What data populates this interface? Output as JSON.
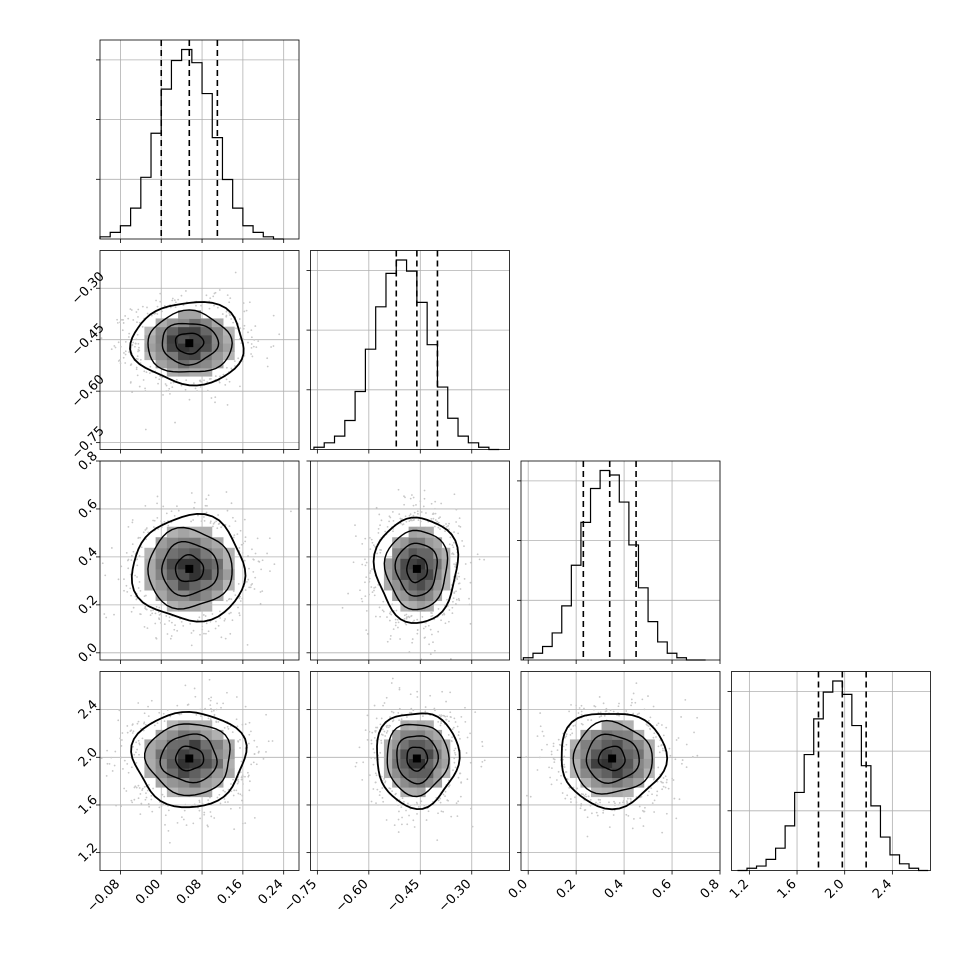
{
  "colors": {
    "background": "#ffffff",
    "line": "#000000",
    "grid": "#b0b0b0",
    "points": "#c8c8c8",
    "density_dark": "#3a3a3a"
  },
  "chart_data": {
    "type": "corner",
    "grid": true,
    "n_params": 4,
    "axes": {
      "p0": {
        "range": [
          -0.12,
          0.27
        ],
        "ticks": [
          -0.08,
          0.0,
          0.08,
          0.16,
          0.24
        ],
        "tick_labels": [
          "−0.08",
          "0.00",
          "0.08",
          "0.16",
          "0.24"
        ]
      },
      "p1": {
        "range": [
          -0.77,
          -0.19
        ],
        "ticks": [
          -0.75,
          -0.6,
          -0.45,
          -0.3
        ],
        "tick_labels": [
          "−0.75",
          "−0.60",
          "−0.45",
          "−0.30"
        ]
      },
      "p2": {
        "range": [
          -0.03,
          0.8
        ],
        "ticks": [
          0.0,
          0.2,
          0.4,
          0.6,
          0.8
        ],
        "tick_labels": [
          "0.0",
          "0.2",
          "0.4",
          "0.6",
          "0.8"
        ]
      },
      "p3": {
        "range": [
          1.05,
          2.72
        ],
        "ticks": [
          1.2,
          1.6,
          2.0,
          2.4
        ],
        "tick_labels": [
          "1.2",
          "1.6",
          "2.0",
          "2.4"
        ]
      }
    },
    "marginals": [
      {
        "param": "p0",
        "quantiles": [
          0.0,
          0.055,
          0.11
        ],
        "hist_edges": [
          -0.12,
          -0.1,
          -0.08,
          -0.06,
          -0.04,
          -0.02,
          0.0,
          0.02,
          0.04,
          0.06,
          0.08,
          0.1,
          0.12,
          0.14,
          0.16,
          0.18,
          0.2,
          0.22,
          0.24
        ],
        "hist_counts": [
          1,
          3,
          6,
          14,
          28,
          48,
          68,
          81,
          86,
          80,
          66,
          46,
          27,
          14,
          6,
          3,
          1,
          0
        ]
      },
      {
        "param": "p1",
        "quantiles": [
          -0.52,
          -0.46,
          -0.4
        ],
        "hist_edges": [
          -0.76,
          -0.73,
          -0.7,
          -0.67,
          -0.64,
          -0.61,
          -0.58,
          -0.55,
          -0.52,
          -0.49,
          -0.46,
          -0.43,
          -0.4,
          -0.37,
          -0.34,
          -0.31,
          -0.28,
          -0.25,
          -0.22
        ],
        "hist_counts": [
          1,
          3,
          6,
          13,
          26,
          45,
          64,
          79,
          85,
          80,
          66,
          47,
          28,
          14,
          6,
          3,
          1,
          0
        ]
      },
      {
        "param": "p2",
        "quantiles": [
          0.23,
          0.34,
          0.45
        ],
        "hist_edges": [
          -0.02,
          0.02,
          0.06,
          0.1,
          0.14,
          0.18,
          0.22,
          0.26,
          0.3,
          0.34,
          0.38,
          0.42,
          0.46,
          0.5,
          0.54,
          0.58,
          0.62,
          0.66,
          0.7,
          0.74
        ],
        "hist_counts": [
          1,
          3,
          6,
          12,
          24,
          42,
          61,
          76,
          84,
          82,
          70,
          51,
          32,
          17,
          8,
          3,
          1,
          0,
          0
        ]
      },
      {
        "param": "p3",
        "quantiles": [
          1.78,
          1.98,
          2.18
        ],
        "hist_edges": [
          1.1,
          1.18,
          1.26,
          1.34,
          1.42,
          1.5,
          1.58,
          1.66,
          1.74,
          1.82,
          1.9,
          1.98,
          2.06,
          2.14,
          2.22,
          2.3,
          2.38,
          2.46,
          2.54,
          2.62,
          2.7
        ],
        "hist_counts": [
          0,
          1,
          2,
          5,
          10,
          20,
          35,
          52,
          68,
          80,
          85,
          79,
          65,
          47,
          29,
          15,
          7,
          3,
          1,
          0
        ]
      }
    ],
    "pairs": [
      {
        "x": "p0",
        "y": "p1",
        "center": [
          0.055,
          -0.46
        ],
        "spread": [
          0.055,
          0.06
        ]
      },
      {
        "x": "p0",
        "y": "p2",
        "center": [
          0.055,
          0.35
        ],
        "spread": [
          0.055,
          0.11
        ]
      },
      {
        "x": "p1",
        "y": "p2",
        "center": [
          -0.46,
          0.35
        ],
        "spread": [
          0.06,
          0.11
        ]
      },
      {
        "x": "p0",
        "y": "p3",
        "center": [
          0.055,
          1.99
        ],
        "spread": [
          0.055,
          0.2
        ]
      },
      {
        "x": "p1",
        "y": "p3",
        "center": [
          -0.46,
          1.99
        ],
        "spread": [
          0.06,
          0.2
        ]
      },
      {
        "x": "p2",
        "y": "p3",
        "center": [
          0.35,
          1.99
        ],
        "spread": [
          0.11,
          0.2
        ]
      }
    ],
    "contour_levels_sigma": [
      0.5,
      1.0,
      1.5,
      2.0
    ]
  }
}
